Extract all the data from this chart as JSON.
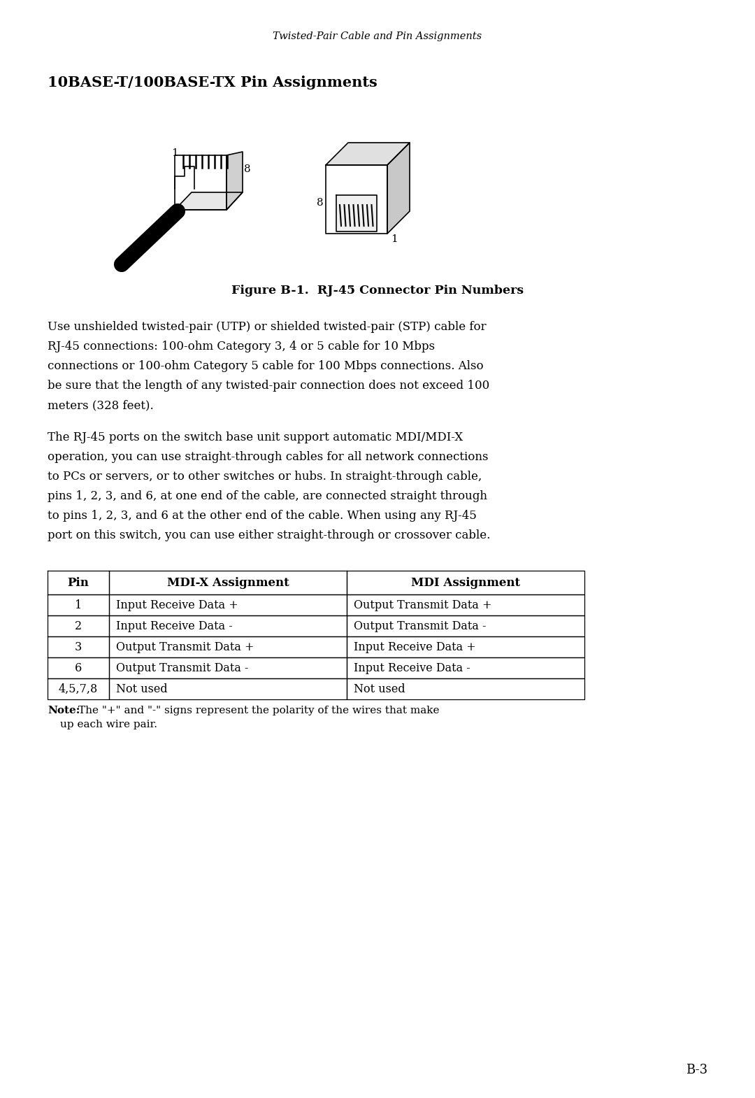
{
  "page_header": "Twisted-Pair Cable and Pin Assignments",
  "section_title": "10BASE-T/100BASE-TX Pin Assignments",
  "figure_caption": "Figure B-1.  RJ-45 Connector Pin Numbers",
  "paragraph1": "Use unshielded twisted-pair (UTP) or shielded twisted-pair (STP) cable for RJ-45 connections: 100-ohm Category 3, 4 or 5 cable for 10 Mbps connections or 100-ohm Category 5 cable for 100 Mbps connections. Also be sure that the length of any twisted-pair connection does not exceed 100 meters (328 feet).",
  "paragraph2": "The RJ-45 ports on the switch base unit support automatic MDI/MDI-X operation, you can use straight-through cables for all network connections to PCs or servers, or to other switches or hubs. In straight-through cable, pins 1, 2, 3, and 6, at one end of the cable, are connected straight through to pins 1, 2, 3, and 6 at the other end of the cable. When using any RJ-45 port on this switch, you can use either straight-through or crossover cable.",
  "table_headers": [
    "Pin",
    "MDI-X Assignment",
    "MDI Assignment"
  ],
  "table_rows": [
    [
      "1",
      "Input Receive Data +",
      "Output Transmit Data +"
    ],
    [
      "2",
      "Input Receive Data -",
      "Output Transmit Data -"
    ],
    [
      "3",
      "Output Transmit Data +",
      "Input Receive Data +"
    ],
    [
      "6",
      "Output Transmit Data -",
      "Input Receive Data -"
    ],
    [
      "4,5,7,8",
      "Not used",
      "Not used"
    ]
  ],
  "note_bold": "Note:",
  "note_text": "The \"+\" and \"-\" signs represent the polarity of the wires that make",
  "note_text2": "up each wire pair.",
  "page_number": "B-3",
  "bg_color": "#ffffff",
  "text_color": "#000000",
  "para1_lines": [
    "Use unshielded twisted-pair (UTP) or shielded twisted-pair (STP) cable for",
    "RJ-45 connections: 100-ohm Category 3, 4 or 5 cable for 10 Mbps",
    "connections or 100-ohm Category 5 cable for 100 Mbps connections. Also",
    "be sure that the length of any twisted-pair connection does not exceed 100",
    "meters (328 feet)."
  ],
  "para2_lines": [
    "The RJ-45 ports on the switch base unit support automatic MDI/MDI-X",
    "operation, you can use straight-through cables for all network connections",
    "to PCs or servers, or to other switches or hubs. In straight-through cable,",
    "pins 1, 2, 3, and 6, at one end of the cable, are connected straight through",
    "to pins 1, 2, 3, and 6 at the other end of the cable. When using any RJ-45",
    "port on this switch, you can use either straight-through or crossover cable."
  ]
}
